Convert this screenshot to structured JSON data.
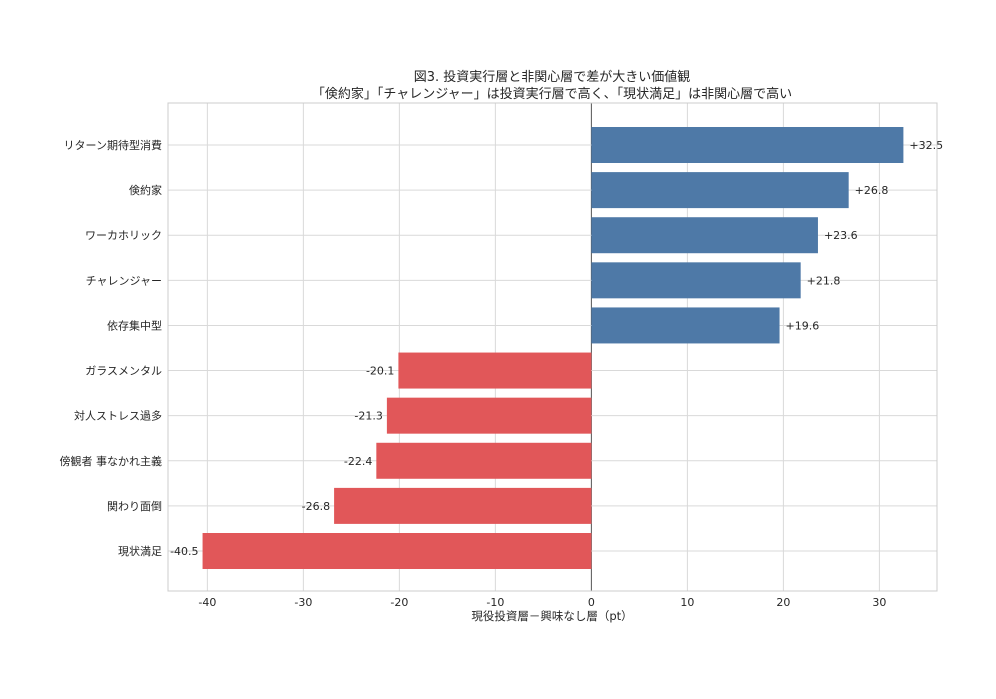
{
  "chart_data": {
    "type": "bar",
    "orientation": "horizontal",
    "title": "図3. 投資実行層と非関心層で差が大きい価値観",
    "subtitle": "「倹約家」「チャレンジャー」は投資実行層で高く、「現状満足」は非関心層で高い",
    "xlabel": "現役投資層－興味なし層（pt）",
    "ylabel": "",
    "xlim": [
      -44.1,
      36.0
    ],
    "xticks": [
      -40,
      -30,
      -20,
      -10,
      0,
      10,
      20,
      30
    ],
    "xtick_labels": [
      "-40",
      "-30",
      "-20",
      "-10",
      "0",
      "10",
      "20",
      "30"
    ],
    "grid": true,
    "categories": [
      "リターン期待型消費",
      "倹約家",
      "ワーカホリック",
      "チャレンジャー",
      "依存集中型",
      "ガラスメンタル",
      "対人ストレス過多",
      "傍観者 事なかれ主義",
      "関わり面倒",
      "現状満足"
    ],
    "values": [
      32.5,
      26.8,
      23.6,
      21.8,
      19.6,
      -20.1,
      -21.3,
      -22.4,
      -26.8,
      -40.5
    ],
    "data_labels": [
      "+32.5",
      "+26.8",
      "+23.6",
      "+21.8",
      "+19.6",
      "-20.1",
      "-21.3",
      "-22.4",
      "-26.8",
      "-40.5"
    ],
    "colors": {
      "positive": "#4e79a7",
      "negative": "#e15759"
    }
  }
}
